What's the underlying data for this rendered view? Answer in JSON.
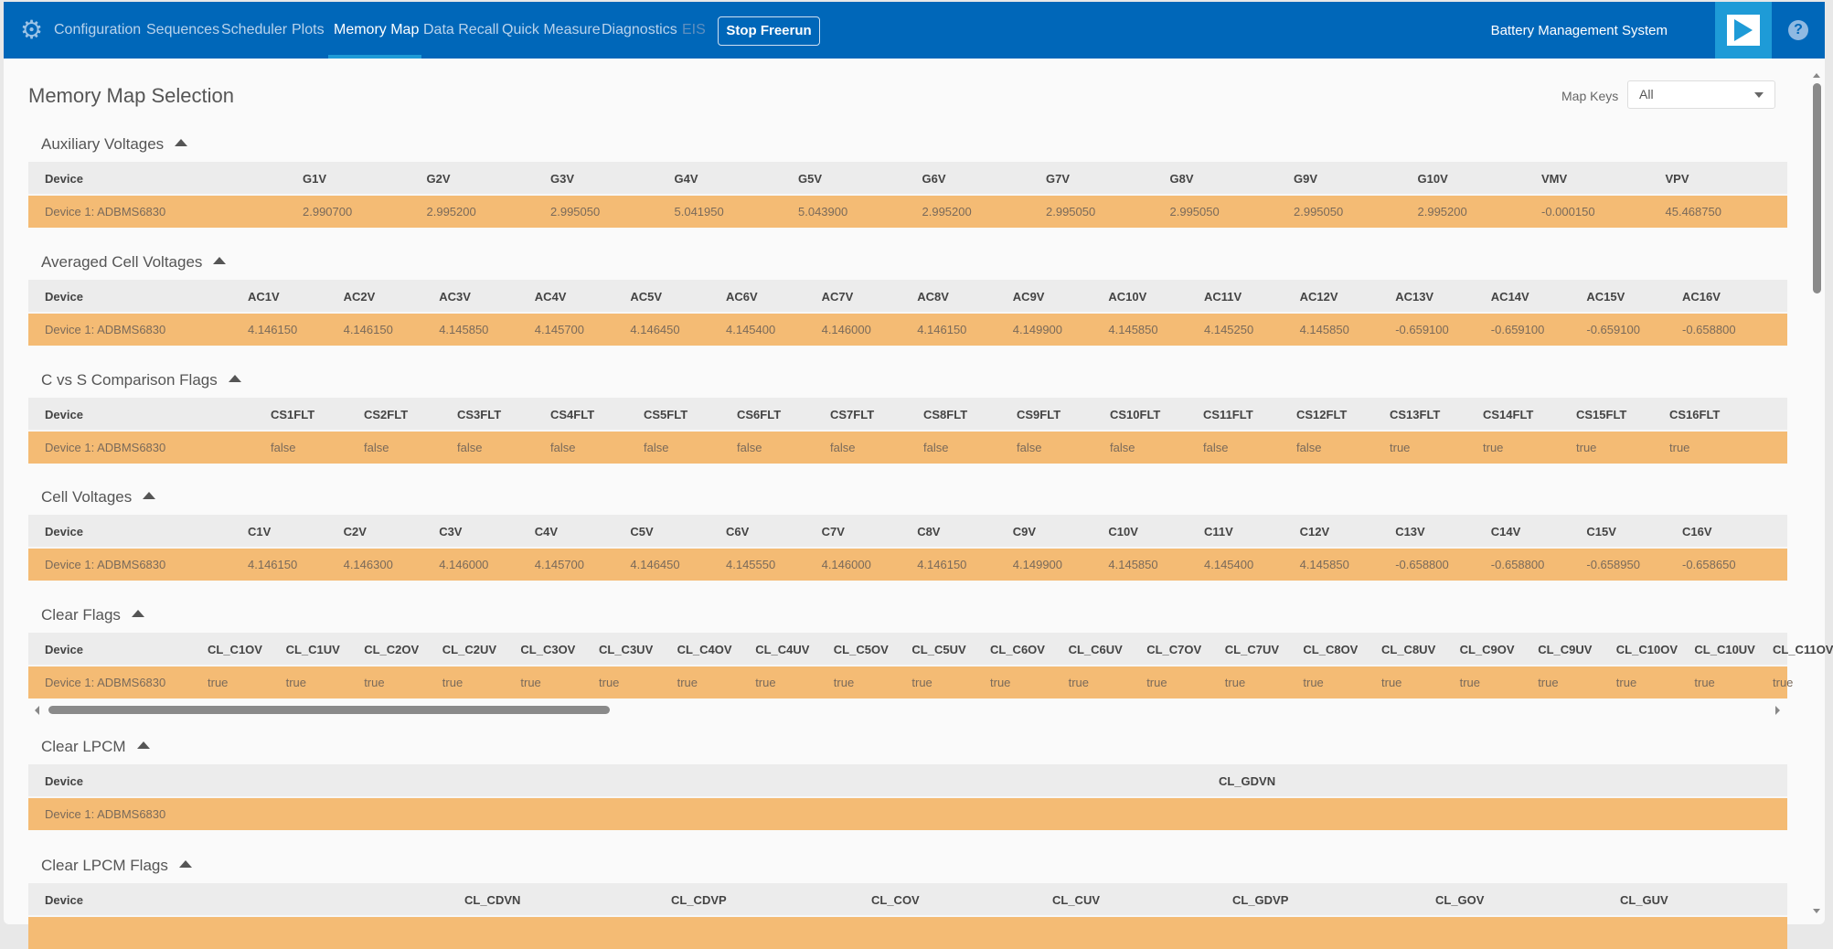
{
  "nav": {
    "items": [
      {
        "label": "Configuration",
        "state": "normal"
      },
      {
        "label": "Sequences",
        "state": "normal"
      },
      {
        "label": "Scheduler",
        "state": "normal"
      },
      {
        "label": "Plots",
        "state": "normal"
      },
      {
        "label": "Memory Map",
        "state": "active"
      },
      {
        "label": "Data Recall",
        "state": "normal"
      },
      {
        "label": "Quick Measure",
        "state": "normal"
      },
      {
        "label": "Diagnostics",
        "state": "normal"
      },
      {
        "label": "EIS",
        "state": "disabled"
      }
    ],
    "stop_button": "Stop Freerun",
    "app_title": "Battery Management System",
    "icons": {
      "settings": "gear-icon",
      "run": "play-icon",
      "help": "help-icon"
    },
    "colors": {
      "bar": "#0067b9",
      "accent": "#1e9bd7"
    }
  },
  "page": {
    "title": "Memory Map Selection",
    "map_keys_label": "Map Keys",
    "map_keys_value": "All"
  },
  "colors": {
    "header_row": "#ececec",
    "data_row": "#f4bb74"
  },
  "sections": [
    {
      "title": "Auxiliary Voltages",
      "columns": [
        "Device",
        "G1V",
        "G2V",
        "G3V",
        "G4V",
        "G5V",
        "G6V",
        "G7V",
        "G8V",
        "G9V",
        "G10V",
        "VMV",
        "VPV"
      ],
      "rows": [
        [
          "Device 1: ADBMS6830",
          "2.990700",
          "2.995200",
          "2.995050",
          "5.041950",
          "5.043900",
          "2.995200",
          "2.995050",
          "2.995050",
          "2.995050",
          "2.995200",
          "-0.000150",
          "45.468750"
        ]
      ]
    },
    {
      "title": "Averaged Cell Voltages",
      "columns": [
        "Device",
        "AC1V",
        "AC2V",
        "AC3V",
        "AC4V",
        "AC5V",
        "AC6V",
        "AC7V",
        "AC8V",
        "AC9V",
        "AC10V",
        "AC11V",
        "AC12V",
        "AC13V",
        "AC14V",
        "AC15V",
        "AC16V"
      ],
      "rows": [
        [
          "Device 1: ADBMS6830",
          "4.146150",
          "4.146150",
          "4.145850",
          "4.145700",
          "4.146450",
          "4.145400",
          "4.146000",
          "4.146150",
          "4.149900",
          "4.145850",
          "4.145250",
          "4.145850",
          "-0.659100",
          "-0.659100",
          "-0.659100",
          "-0.658800"
        ]
      ]
    },
    {
      "title": "C vs S Comparison Flags",
      "columns": [
        "Device",
        "CS1FLT",
        "CS2FLT",
        "CS3FLT",
        "CS4FLT",
        "CS5FLT",
        "CS6FLT",
        "CS7FLT",
        "CS8FLT",
        "CS9FLT",
        "CS10FLT",
        "CS11FLT",
        "CS12FLT",
        "CS13FLT",
        "CS14FLT",
        "CS15FLT",
        "CS16FLT"
      ],
      "rows": [
        [
          "Device 1: ADBMS6830",
          "false",
          "false",
          "false",
          "false",
          "false",
          "false",
          "false",
          "false",
          "false",
          "false",
          "false",
          "false",
          "true",
          "true",
          "true",
          "true"
        ]
      ]
    },
    {
      "title": "Cell Voltages",
      "columns": [
        "Device",
        "C1V",
        "C2V",
        "C3V",
        "C4V",
        "C5V",
        "C6V",
        "C7V",
        "C8V",
        "C9V",
        "C10V",
        "C11V",
        "C12V",
        "C13V",
        "C14V",
        "C15V",
        "C16V"
      ],
      "rows": [
        [
          "Device 1: ADBMS6830",
          "4.146150",
          "4.146300",
          "4.146000",
          "4.145700",
          "4.146450",
          "4.145550",
          "4.146000",
          "4.146150",
          "4.149900",
          "4.145850",
          "4.145400",
          "4.145850",
          "-0.658800",
          "-0.658800",
          "-0.658950",
          "-0.658650"
        ]
      ]
    },
    {
      "title": "Clear Flags",
      "columns": [
        "Device",
        "CL_C1OV",
        "CL_C1UV",
        "CL_C2OV",
        "CL_C2UV",
        "CL_C3OV",
        "CL_C3UV",
        "CL_C4OV",
        "CL_C4UV",
        "CL_C5OV",
        "CL_C5UV",
        "CL_C6OV",
        "CL_C6UV",
        "CL_C7OV",
        "CL_C7UV",
        "CL_C8OV",
        "CL_C8UV",
        "CL_C9OV",
        "CL_C9UV",
        "CL_C10OV",
        "CL_C10UV",
        "CL_C11OV"
      ],
      "rows": [
        [
          "Device 1: ADBMS6830",
          "true",
          "true",
          "true",
          "true",
          "true",
          "true",
          "true",
          "true",
          "true",
          "true",
          "true",
          "true",
          "true",
          "true",
          "true",
          "true",
          "true",
          "true",
          "true",
          "true",
          "true"
        ]
      ]
    },
    {
      "title": "Clear LPCM",
      "columns": [
        "Device",
        "CL_GDVN"
      ],
      "rows": [
        [
          "Device 1: ADBMS6830",
          ""
        ]
      ]
    },
    {
      "title": "Clear LPCM Flags",
      "columns": [
        "Device",
        "CL_CDVN",
        "CL_CDVP",
        "CL_COV",
        "CL_CUV",
        "CL_GDVP",
        "CL_GOV",
        "CL_GUV"
      ],
      "rows": [
        [
          "",
          "",
          "",
          "",
          "",
          "",
          "",
          ""
        ]
      ]
    }
  ]
}
